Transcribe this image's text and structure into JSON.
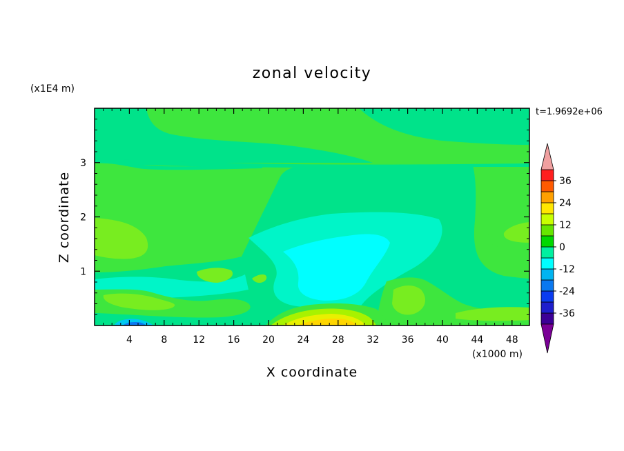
{
  "chart_data": {
    "type": "heatmap",
    "title": "zonal velocity",
    "xlabel": "X coordinate",
    "ylabel": "Z coordinate",
    "x_multiplier": "(x1000 m)",
    "y_multiplier": "(x1E4 m)",
    "time_label": "t=1.9692e+06",
    "xlim": [
      0,
      50
    ],
    "ylim": [
      0,
      4
    ],
    "x_ticks": [
      "4",
      "8",
      "12",
      "16",
      "20",
      "24",
      "28",
      "32",
      "36",
      "40",
      "44",
      "48"
    ],
    "y_ticks": [
      "1",
      "2",
      "3"
    ],
    "colorbar": {
      "levels": [
        -42,
        -36,
        -30,
        -24,
        -18,
        -12,
        -6,
        0,
        6,
        12,
        18,
        24,
        30,
        36,
        42
      ],
      "labels": [
        "36",
        "24",
        "12",
        "0",
        "-12",
        "-24",
        "-36"
      ],
      "colors": [
        "#7a0096",
        "#3c0096",
        "#1e1ecc",
        "#0a3cf0",
        "#0a78f0",
        "#00b4f0",
        "#00ffff",
        "#00f0a0",
        "#00d800",
        "#66e600",
        "#c8ff00",
        "#ffe600",
        "#ffa000",
        "#ff5a00",
        "#ff1e1e",
        "#f0a0a0"
      ]
    },
    "field_notes": "Background level 0..6 (light green) in upper layer above z~3 with 0..-6 (sea green) bands; mid-depth region x=20-40 shows negative flow down to -12 (cyan); near-surface positive flow 6-24 (yellow) centered x~24-30 at z~0.1; weak negative near x=4 at bottom."
  }
}
